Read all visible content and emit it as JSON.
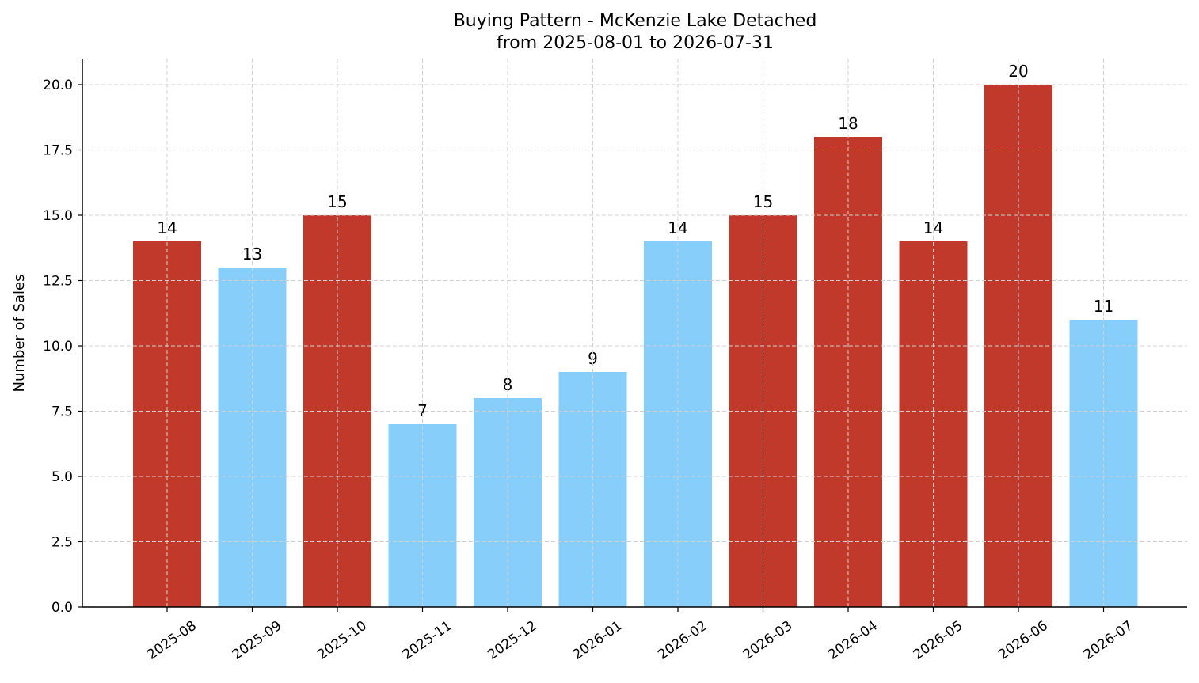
{
  "chart_data": {
    "type": "bar",
    "title": "Buying Pattern - McKenzie Lake Detached",
    "subtitle": "from 2025-08-01 to 2026-07-31",
    "xlabel": "",
    "ylabel": "Number of Sales",
    "categories": [
      "2025-08",
      "2025-09",
      "2025-10",
      "2025-11",
      "2025-12",
      "2026-01",
      "2026-02",
      "2026-03",
      "2026-04",
      "2026-05",
      "2026-06",
      "2026-07"
    ],
    "values": [
      14,
      13,
      15,
      7,
      8,
      9,
      14,
      15,
      18,
      14,
      20,
      11
    ],
    "bar_colors": [
      "#c0392b",
      "#87cefa",
      "#c0392b",
      "#87cefa",
      "#87cefa",
      "#87cefa",
      "#87cefa",
      "#c0392b",
      "#c0392b",
      "#c0392b",
      "#c0392b",
      "#87cefa"
    ],
    "ylim": [
      0,
      21
    ],
    "yticks": [
      "0.0",
      "2.5",
      "5.0",
      "7.5",
      "10.0",
      "12.5",
      "15.0",
      "17.5",
      "20.0"
    ],
    "grid": true,
    "legend": "none"
  }
}
